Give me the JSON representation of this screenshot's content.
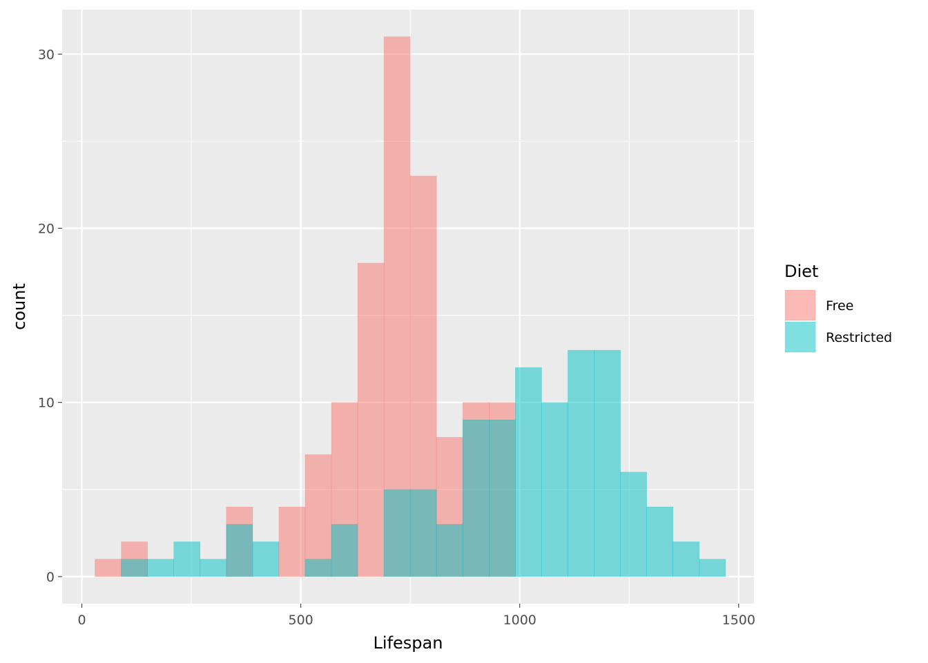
{
  "chart_data": {
    "type": "bar",
    "subtype": "overlapping-histogram",
    "title": "",
    "xlabel": "Lifespan",
    "ylabel": "count",
    "xlim": [
      -45,
      1535
    ],
    "ylim": [
      -1.55,
      32.55
    ],
    "x_ticks": [
      0,
      500,
      1000,
      1500
    ],
    "x_tick_labels": [
      "0",
      "500",
      "1000",
      "1500"
    ],
    "y_ticks": [
      0,
      10,
      20,
      30
    ],
    "y_tick_labels": [
      "0",
      "10",
      "20",
      "30"
    ],
    "grid": true,
    "bin_width": 60,
    "bin_starts": [
      30,
      90,
      150,
      210,
      270,
      330,
      390,
      450,
      510,
      570,
      630,
      690,
      750,
      810,
      870,
      930,
      990,
      1050,
      1110,
      1170,
      1230,
      1290,
      1350,
      1410
    ],
    "legend": {
      "title": "Diet",
      "position": "right"
    },
    "series": [
      {
        "name": "Free",
        "color": "#F8766D",
        "values": [
          1,
          2,
          0,
          0,
          0,
          4,
          0,
          4,
          7,
          10,
          18,
          31,
          23,
          8,
          10,
          10,
          0,
          0,
          0,
          0,
          0,
          0,
          0,
          0
        ]
      },
      {
        "name": "Restricted",
        "color": "#00BFC4",
        "values": [
          0,
          1,
          1,
          2,
          1,
          3,
          2,
          0,
          1,
          3,
          0,
          5,
          5,
          3,
          9,
          9,
          12,
          10,
          13,
          13,
          6,
          4,
          2,
          1
        ]
      }
    ],
    "panel_background": "#EBEBEB",
    "grid_color": "#FFFFFF"
  }
}
